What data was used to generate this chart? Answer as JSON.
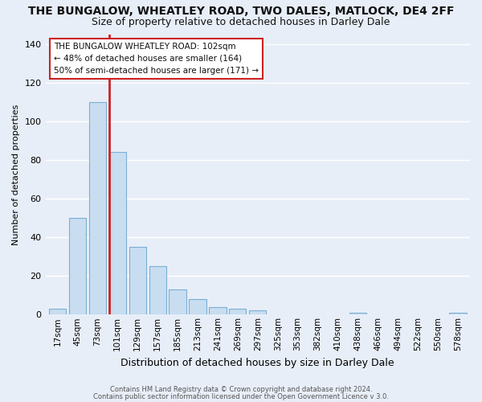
{
  "title": "THE BUNGALOW, WHEATLEY ROAD, TWO DALES, MATLOCK, DE4 2FF",
  "subtitle": "Size of property relative to detached houses in Darley Dale",
  "xlabel": "Distribution of detached houses by size in Darley Dale",
  "ylabel": "Number of detached properties",
  "categories": [
    "17sqm",
    "45sqm",
    "73sqm",
    "101sqm",
    "129sqm",
    "157sqm",
    "185sqm",
    "213sqm",
    "241sqm",
    "269sqm",
    "297sqm",
    "325sqm",
    "353sqm",
    "382sqm",
    "410sqm",
    "438sqm",
    "466sqm",
    "494sqm",
    "522sqm",
    "550sqm",
    "578sqm"
  ],
  "values": [
    3,
    50,
    110,
    84,
    35,
    25,
    13,
    8,
    4,
    3,
    2,
    0,
    0,
    0,
    0,
    1,
    0,
    0,
    0,
    0,
    1
  ],
  "bar_color": "#c8ddf0",
  "bar_edge_color": "#7aafd4",
  "red_line_bar_index": 3,
  "highlight_color": "#cc2222",
  "annotation_line1": "THE BUNGALOW WHEATLEY ROAD: 102sqm",
  "annotation_line2": "← 48% of detached houses are smaller (164)",
  "annotation_line3": "50% of semi-detached houses are larger (171) →",
  "annotation_box_facecolor": "#ffffff",
  "annotation_border_color": "#cc2222",
  "ylim": [
    0,
    145
  ],
  "yticks": [
    0,
    20,
    40,
    60,
    80,
    100,
    120,
    140
  ],
  "footer_line1": "Contains HM Land Registry data © Crown copyright and database right 2024.",
  "footer_line2": "Contains public sector information licensed under the Open Government Licence v 3.0.",
  "bg_color": "#e8eef8",
  "grid_color": "#ffffff",
  "title_fontsize": 10,
  "subtitle_fontsize": 9,
  "ylabel_fontsize": 8,
  "xlabel_fontsize": 9
}
